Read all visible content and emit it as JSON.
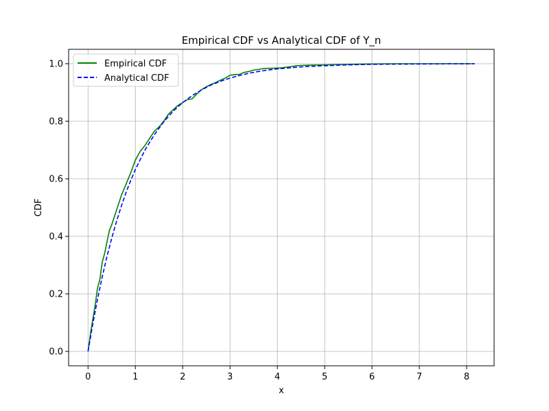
{
  "chart_data": {
    "type": "line",
    "title": "Empirical CDF vs Analytical CDF of Y_n",
    "xlabel": "x",
    "ylabel": "CDF",
    "xlim": [
      -0.41,
      8.58
    ],
    "ylim": [
      -0.05,
      1.05
    ],
    "xticks": [
      0,
      1,
      2,
      3,
      4,
      5,
      6,
      7,
      8
    ],
    "yticks": [
      0.0,
      0.2,
      0.4,
      0.6,
      0.8,
      1.0
    ],
    "xtick_labels": [
      "0",
      "1",
      "2",
      "3",
      "4",
      "5",
      "6",
      "7",
      "8"
    ],
    "ytick_labels": [
      "0.0",
      "0.2",
      "0.4",
      "0.6",
      "0.8",
      "1.0"
    ],
    "grid": true,
    "legend_position": "top-left",
    "series": [
      {
        "name": "Empirical CDF",
        "color": "#008000",
        "style": "solid",
        "x": [
          0,
          0.05,
          0.1,
          0.15,
          0.2,
          0.25,
          0.3,
          0.35,
          0.4,
          0.45,
          0.5,
          0.6,
          0.7,
          0.8,
          0.9,
          1.0,
          1.1,
          1.2,
          1.3,
          1.4,
          1.5,
          1.6,
          1.7,
          1.8,
          1.9,
          2.0,
          2.1,
          2.2,
          2.3,
          2.4,
          2.5,
          2.6,
          2.7,
          2.8,
          2.9,
          3.0,
          3.1,
          3.2,
          3.3,
          3.4,
          3.5,
          3.6,
          3.7,
          3.8,
          3.9,
          4.0,
          4.1,
          4.2,
          4.3,
          4.4,
          4.5,
          4.7,
          5.0,
          5.3,
          5.6,
          5.9,
          6.5,
          7.0,
          7.5,
          8.17
        ],
        "y": [
          0.0,
          0.06,
          0.11,
          0.16,
          0.22,
          0.25,
          0.31,
          0.34,
          0.38,
          0.42,
          0.44,
          0.49,
          0.54,
          0.58,
          0.62,
          0.665,
          0.695,
          0.715,
          0.74,
          0.765,
          0.78,
          0.8,
          0.825,
          0.84,
          0.855,
          0.865,
          0.875,
          0.878,
          0.895,
          0.91,
          0.92,
          0.928,
          0.935,
          0.943,
          0.95,
          0.96,
          0.962,
          0.963,
          0.97,
          0.973,
          0.978,
          0.98,
          0.983,
          0.984,
          0.984,
          0.985,
          0.986,
          0.988,
          0.99,
          0.993,
          0.994,
          0.995,
          0.996,
          0.997,
          0.998,
          0.999,
          1.0,
          1.0,
          1.0,
          1.0
        ]
      },
      {
        "name": "Analytical CDF",
        "color": "#0000ff",
        "style": "dashed",
        "x": [
          0,
          0.1,
          0.2,
          0.3,
          0.4,
          0.5,
          0.6,
          0.7,
          0.8,
          0.9,
          1.0,
          1.2,
          1.4,
          1.6,
          1.8,
          2.0,
          2.2,
          2.4,
          2.6,
          2.8,
          3.0,
          3.2,
          3.4,
          3.6,
          3.8,
          4.0,
          4.3,
          4.6,
          5.0,
          5.5,
          6.0,
          6.5,
          7.0,
          7.5,
          8.17
        ],
        "y": [
          0.0,
          0.095,
          0.181,
          0.259,
          0.33,
          0.393,
          0.451,
          0.503,
          0.551,
          0.593,
          0.632,
          0.699,
          0.753,
          0.798,
          0.835,
          0.865,
          0.889,
          0.909,
          0.926,
          0.939,
          0.95,
          0.959,
          0.967,
          0.973,
          0.978,
          0.982,
          0.986,
          0.99,
          0.993,
          0.996,
          0.998,
          0.9985,
          0.999,
          0.9994,
          0.9997
        ]
      }
    ]
  }
}
